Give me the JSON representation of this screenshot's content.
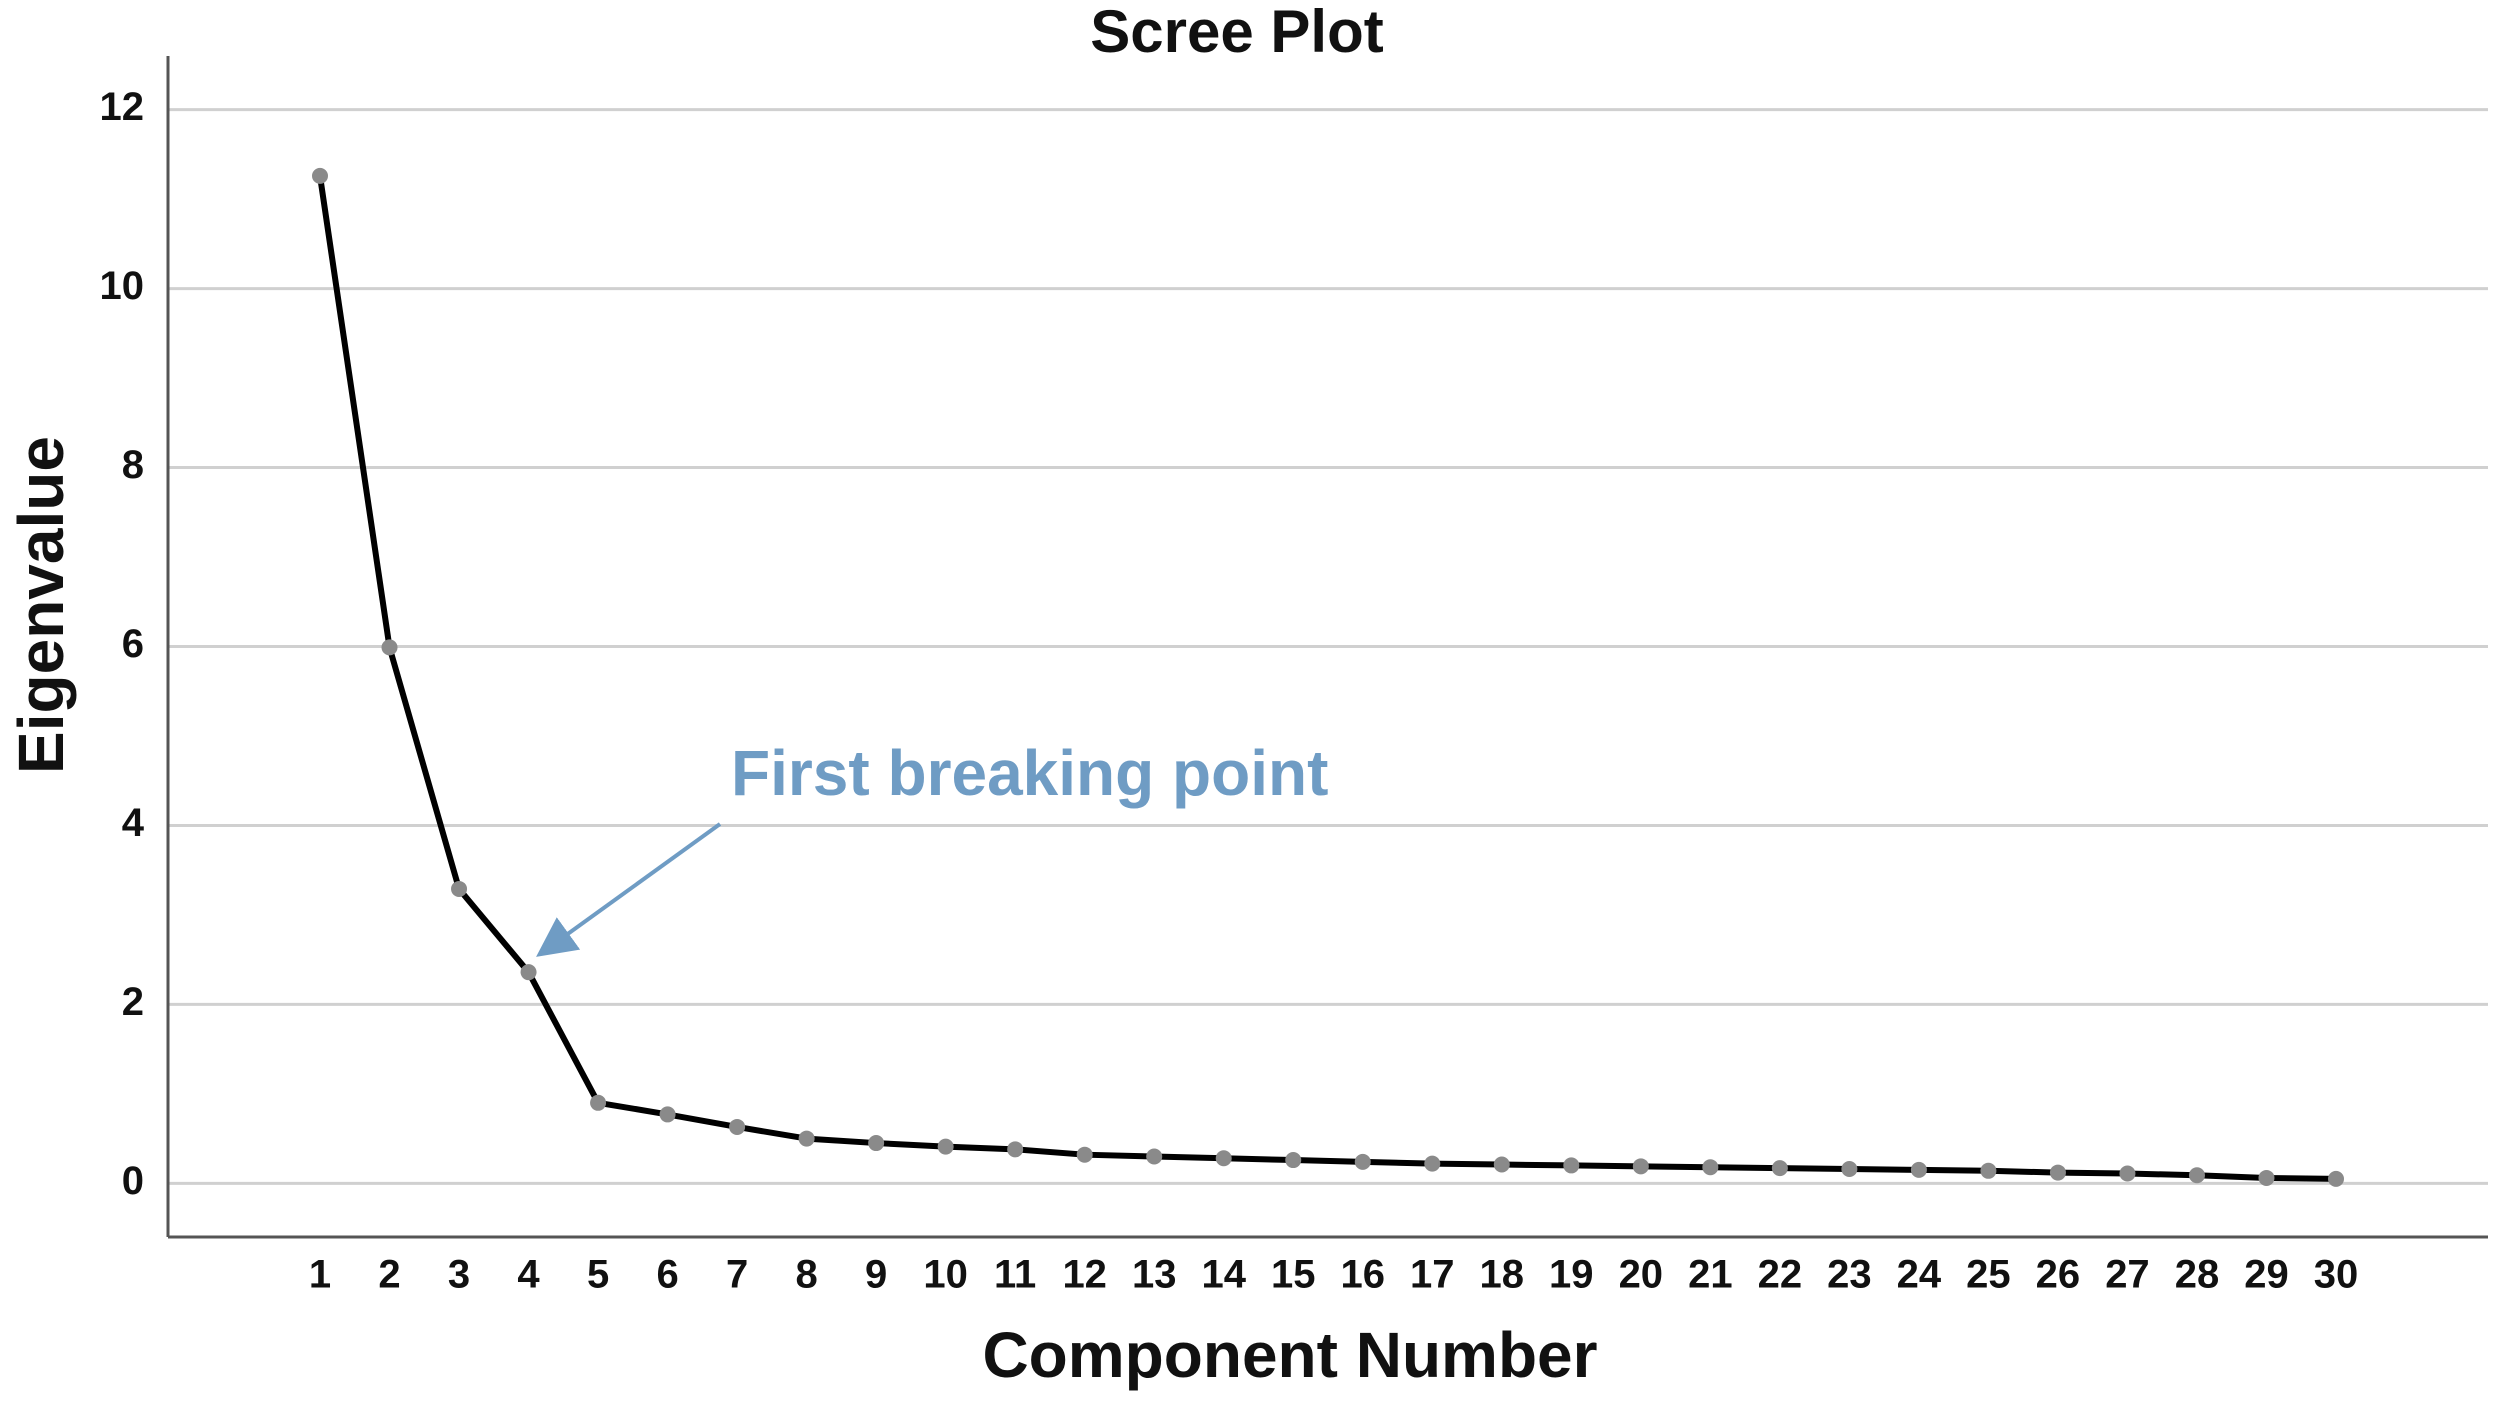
{
  "chart_data": {
    "type": "line",
    "title": "Scree Plot",
    "x_label": "Component Number",
    "y_label": "Eigenvalue",
    "annotation": "First breaking point",
    "categories": [
      "1",
      "2",
      "3",
      "4",
      "5",
      "6",
      "7",
      "8",
      "9",
      "10",
      "11",
      "12",
      "13",
      "14",
      "15",
      "16",
      "17",
      "18",
      "19",
      "20",
      "21",
      "22",
      "23",
      "24",
      "25",
      "26",
      "27",
      "28",
      "29",
      "30"
    ],
    "series": [
      {
        "name": "Eigenvalue",
        "color": "#000000",
        "marker_color": "#8a8a8a",
        "values": [
          11.26,
          5.99,
          3.29,
          2.36,
          0.9,
          0.77,
          0.63,
          0.5,
          0.45,
          0.41,
          0.38,
          0.32,
          0.3,
          0.28,
          0.26,
          0.24,
          0.22,
          0.21,
          0.2,
          0.19,
          0.18,
          0.17,
          0.16,
          0.15,
          0.14,
          0.12,
          0.11,
          0.09,
          0.06,
          0.05
        ]
      }
    ],
    "ylim": [
      -0.6,
      12.6
    ],
    "yticks": [
      0,
      2,
      4,
      6,
      8,
      10,
      12
    ],
    "grid": true
  }
}
